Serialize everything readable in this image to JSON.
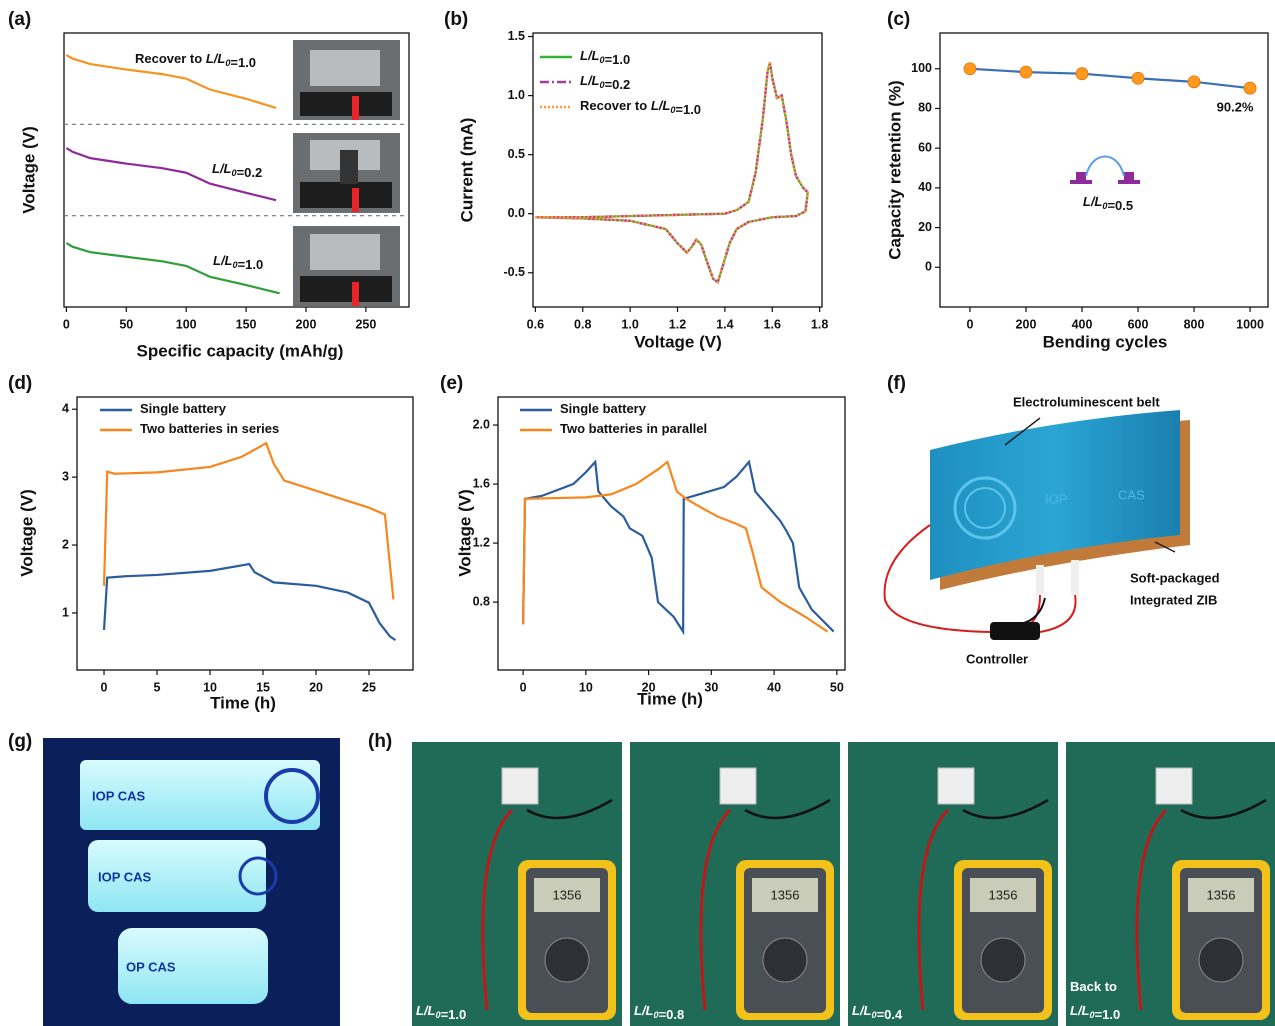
{
  "chart_data": [
    {
      "type": "line",
      "panel_label": "(a)",
      "xlabel": "Specific capacity (mAh/g)",
      "ylabel": "Voltage (V)",
      "xlim": [
        -2,
        286
      ],
      "xticks": [
        0,
        50,
        100,
        150,
        200,
        250
      ],
      "ylim": [
        0,
        3
      ],
      "legend": false,
      "series": [
        {
          "name": "Recover to L/L0=1.0",
          "color": "#f7941d",
          "dash": "solid",
          "x": [
            0,
            5,
            20,
            50,
            80,
            100,
            120,
            150,
            175
          ],
          "values": [
            2.76,
            2.72,
            2.66,
            2.6,
            2.55,
            2.5,
            2.38,
            2.28,
            2.18
          ]
        },
        {
          "name": "L/L0=0.2",
          "color": "#8e2a9a",
          "dash": "solid",
          "x": [
            0,
            5,
            20,
            50,
            80,
            100,
            120,
            150,
            175
          ],
          "values": [
            1.74,
            1.7,
            1.63,
            1.57,
            1.52,
            1.47,
            1.35,
            1.25,
            1.17
          ]
        },
        {
          "name": "L/L0=1.0",
          "color": "#2f9e3a",
          "dash": "solid",
          "x": [
            0,
            5,
            20,
            50,
            80,
            100,
            120,
            150,
            178
          ],
          "values": [
            0.7,
            0.66,
            0.6,
            0.55,
            0.5,
            0.45,
            0.33,
            0.24,
            0.15
          ]
        }
      ]
    },
    {
      "type": "line",
      "panel_label": "(b)",
      "xlabel": "Voltage (V)",
      "ylabel": "Current (mA)",
      "xlim": [
        0.59,
        1.81
      ],
      "xticks": [
        0.6,
        0.8,
        {
          "value": 1,
          "label": "1.0"
        },
        1.2,
        1.4,
        1.6,
        1.8
      ],
      "ylim": [
        -0.79,
        1.53
      ],
      "yticks": [
        -0.5,
        {
          "value": 0,
          "label": "0.0"
        },
        0.5,
        {
          "value": 1,
          "label": "1.0"
        },
        1.5
      ],
      "legend": true,
      "series": [
        {
          "name": "L/L0=1.0",
          "color": "#33b233",
          "dash": "solid",
          "x": [
            0.6,
            0.8,
            1.0,
            1.2,
            1.4,
            1.45,
            1.5,
            1.53,
            1.56,
            1.58,
            1.59,
            1.6,
            1.62,
            1.64,
            1.66,
            1.68,
            1.7,
            1.73,
            1.75,
            1.74,
            1.7,
            1.6,
            1.5,
            1.45,
            1.42,
            1.39,
            1.37,
            1.35,
            1.32,
            1.3,
            1.28,
            1.26,
            1.24,
            1.2,
            1.15,
            1.0,
            0.8,
            0.6
          ],
          "values": [
            -0.03,
            -0.03,
            -0.02,
            -0.01,
            0.0,
            0.03,
            0.1,
            0.35,
            0.8,
            1.2,
            1.28,
            1.15,
            0.98,
            1.0,
            0.78,
            0.5,
            0.32,
            0.22,
            0.18,
            0.02,
            -0.02,
            -0.03,
            -0.07,
            -0.13,
            -0.25,
            -0.45,
            -0.58,
            -0.55,
            -0.38,
            -0.26,
            -0.22,
            -0.28,
            -0.33,
            -0.25,
            -0.13,
            -0.06,
            -0.04,
            -0.03
          ]
        },
        {
          "name": "L/L0=0.2",
          "color": "#a040a0",
          "dash": "dashdot",
          "x": [
            0.6,
            0.8,
            1.0,
            1.2,
            1.4,
            1.45,
            1.5,
            1.53,
            1.56,
            1.58,
            1.59,
            1.6,
            1.62,
            1.64,
            1.66,
            1.68,
            1.7,
            1.73,
            1.75,
            1.74,
            1.7,
            1.6,
            1.5,
            1.45,
            1.42,
            1.39,
            1.37,
            1.35,
            1.32,
            1.3,
            1.28,
            1.26,
            1.24,
            1.2,
            1.15,
            1.0,
            0.8,
            0.6
          ],
          "values": [
            -0.03,
            -0.03,
            -0.02,
            -0.01,
            0.0,
            0.03,
            0.1,
            0.35,
            0.8,
            1.2,
            1.28,
            1.15,
            0.98,
            1.0,
            0.78,
            0.5,
            0.32,
            0.22,
            0.18,
            0.02,
            -0.02,
            -0.03,
            -0.07,
            -0.13,
            -0.25,
            -0.45,
            -0.58,
            -0.55,
            -0.38,
            -0.26,
            -0.22,
            -0.28,
            -0.33,
            -0.25,
            -0.13,
            -0.06,
            -0.04,
            -0.03
          ]
        },
        {
          "name": "Recover to L/L0=1.0",
          "color": "#ff9933",
          "dash": "dotted",
          "x": [
            0.6,
            0.8,
            1.0,
            1.2,
            1.4,
            1.45,
            1.5,
            1.53,
            1.56,
            1.58,
            1.59,
            1.6,
            1.62,
            1.64,
            1.66,
            1.68,
            1.7,
            1.73,
            1.75,
            1.74,
            1.7,
            1.6,
            1.5,
            1.45,
            1.42,
            1.39,
            1.37,
            1.35,
            1.32,
            1.3,
            1.28,
            1.26,
            1.24,
            1.2,
            1.15,
            1.0,
            0.8,
            0.6
          ],
          "values": [
            -0.03,
            -0.03,
            -0.02,
            -0.01,
            0.0,
            0.03,
            0.1,
            0.35,
            0.8,
            1.2,
            1.28,
            1.15,
            0.98,
            1.0,
            0.78,
            0.5,
            0.32,
            0.22,
            0.18,
            0.02,
            -0.02,
            -0.03,
            -0.07,
            -0.13,
            -0.25,
            -0.45,
            -0.58,
            -0.55,
            -0.38,
            -0.26,
            -0.22,
            -0.28,
            -0.33,
            -0.25,
            -0.13,
            -0.06,
            -0.04,
            -0.03
          ]
        }
      ]
    },
    {
      "type": "line",
      "panel_label": "(c)",
      "xlabel": "Bending cycles",
      "ylabel": "Capacity retention (%)",
      "xlim": [
        -107,
        1064
      ],
      "xticks": [
        0,
        200,
        400,
        600,
        800,
        1000
      ],
      "ylim": [
        -20,
        118
      ],
      "yticks": [
        0,
        20,
        40,
        60,
        80,
        100
      ],
      "legend": false,
      "markers": true,
      "annotation": "L/L0=0.5",
      "series": [
        {
          "color": "#3b6fb6",
          "marker_color": "#ff9a1f",
          "dash": "solid",
          "x": [
            0,
            200,
            400,
            600,
            800,
            1000
          ],
          "values": [
            100,
            98.3,
            97.5,
            95.2,
            93.4,
            90.2
          ],
          "value_labels": [
            null,
            null,
            null,
            null,
            null,
            "90.2%"
          ]
        }
      ]
    },
    {
      "type": "line",
      "panel_label": "(d)",
      "xlabel": "Time (h)",
      "ylabel": "Voltage (V)",
      "xlim": [
        -2.55,
        29.15
      ],
      "xticks": [
        0,
        5,
        10,
        15,
        20,
        25
      ],
      "ylim": [
        0.16,
        4.18
      ],
      "yticks": [
        1,
        2,
        3,
        4
      ],
      "legend": true,
      "series": [
        {
          "name": "Single battery",
          "color": "#2b5c9e",
          "dash": "solid",
          "x": [
            0,
            0.3,
            2,
            5,
            10,
            13.7,
            14.2,
            16,
            20,
            23,
            25,
            26,
            27,
            27.5
          ],
          "values": [
            0.75,
            1.52,
            1.54,
            1.56,
            1.62,
            1.72,
            1.6,
            1.45,
            1.4,
            1.3,
            1.15,
            0.85,
            0.65,
            0.6
          ]
        },
        {
          "name": "Two batteries in series",
          "color": "#f7861d",
          "dash": "solid",
          "x": [
            0,
            0.3,
            1,
            5,
            10,
            13,
            15.3,
            16,
            17,
            20,
            23,
            25,
            26.5,
            27.3
          ],
          "values": [
            1.4,
            3.08,
            3.05,
            3.07,
            3.15,
            3.3,
            3.5,
            3.2,
            2.95,
            2.8,
            2.65,
            2.55,
            2.45,
            1.2
          ]
        }
      ]
    },
    {
      "type": "line",
      "panel_label": "(e)",
      "xlabel": "Time (h)",
      "ylabel": "Voltage (V)",
      "xlim": [
        -4,
        51.3
      ],
      "xticks": [
        0,
        10,
        20,
        30,
        40,
        50
      ],
      "ylim": [
        0.34,
        2.19
      ],
      "yticks": [
        0.8,
        1.2,
        1.6,
        {
          "value": 2,
          "label": "2.0"
        }
      ],
      "legend": true,
      "series": [
        {
          "name": "Single battery",
          "color": "#2b5c9e",
          "dash": "solid",
          "x": [
            0,
            0.3,
            3,
            8,
            10,
            11.5,
            12,
            14,
            16,
            17,
            19,
            20.5,
            21.5,
            24,
            25.5,
            25.6,
            28,
            32,
            34,
            36,
            37,
            39,
            41,
            42,
            43,
            44,
            46,
            49.5
          ],
          "values": [
            0.65,
            1.5,
            1.52,
            1.6,
            1.68,
            1.75,
            1.55,
            1.45,
            1.38,
            1.3,
            1.25,
            1.1,
            0.8,
            0.7,
            0.6,
            1.5,
            1.53,
            1.58,
            1.65,
            1.75,
            1.55,
            1.45,
            1.35,
            1.28,
            1.2,
            0.9,
            0.75,
            0.6
          ]
        },
        {
          "name": "Two batteries in parallel",
          "color": "#f7861d",
          "dash": "solid",
          "x": [
            0,
            0.3,
            10,
            14,
            18,
            21.5,
            23,
            24.5,
            26,
            28,
            31,
            34,
            35.5,
            36.5,
            38,
            41,
            45,
            48.5
          ],
          "values": [
            0.65,
            1.5,
            1.51,
            1.53,
            1.6,
            1.7,
            1.75,
            1.55,
            1.5,
            1.45,
            1.38,
            1.33,
            1.3,
            1.15,
            0.9,
            0.8,
            0.7,
            0.6
          ]
        }
      ]
    }
  ],
  "diagram": {
    "panel_label": "(f)",
    "belt_text": [
      "IOP",
      "CAS"
    ],
    "labels": [
      "Electroluminescent belt",
      "Soft-packaged",
      "Integrated ZIB",
      "Controller"
    ]
  },
  "photo_g": {
    "panel_label": "(g)",
    "texts": [
      "IOP CAS",
      "IOP CAS",
      "OP CAS"
    ]
  },
  "photos_h": {
    "panel_label": "(h)",
    "display": "1356",
    "captions": [
      [
        "L/L0=1.0"
      ],
      [
        "L/L0=0.8"
      ],
      [
        "L/L0=0.4"
      ],
      [
        "Back to",
        "L/L0=1.0"
      ]
    ]
  }
}
